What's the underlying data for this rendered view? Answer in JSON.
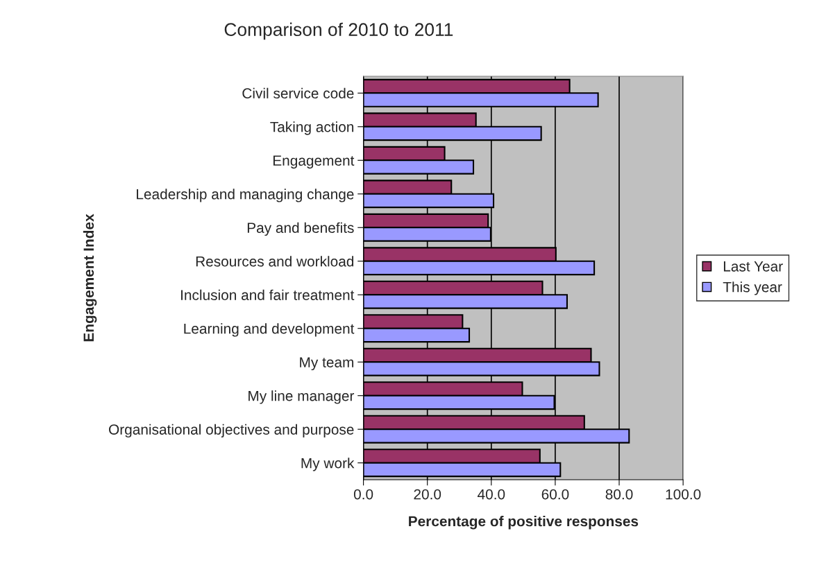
{
  "chart_data": {
    "type": "bar",
    "orientation": "horizontal",
    "title": "Comparison of 2010 to 2011",
    "xlabel": "Percentage of positive responses",
    "ylabel": "Engagement Index",
    "categories": [
      "Civil service code",
      "Taking action",
      "Engagement",
      "Leadership and managing change",
      "Pay and benefits",
      "Resources and workload",
      "Inclusion and fair treatment",
      "Learning and development",
      "My team",
      "My line manager",
      "Organisational objectives and purpose",
      "My work"
    ],
    "series": [
      {
        "name": "Last Year",
        "color": "#993366",
        "values": [
          64.5,
          35.2,
          25.4,
          27.5,
          39.0,
          60.2,
          56.0,
          31.0,
          71.2,
          49.7,
          69.1,
          55.2
        ]
      },
      {
        "name": "This year",
        "color": "#9999ff",
        "values": [
          73.4,
          55.6,
          34.4,
          40.7,
          39.8,
          72.2,
          63.7,
          33.1,
          73.8,
          59.7,
          83.1,
          61.6
        ]
      }
    ],
    "xlim": [
      0,
      100
    ],
    "xticks": [
      {
        "value": 0,
        "label": "0.0"
      },
      {
        "value": 20,
        "label": "20.0"
      },
      {
        "value": 40,
        "label": "40.0"
      },
      {
        "value": 60,
        "label": "60.0"
      },
      {
        "value": 80,
        "label": "80.0"
      },
      {
        "value": 100,
        "label": "100.0"
      }
    ],
    "grid": "x",
    "legend": "right"
  }
}
